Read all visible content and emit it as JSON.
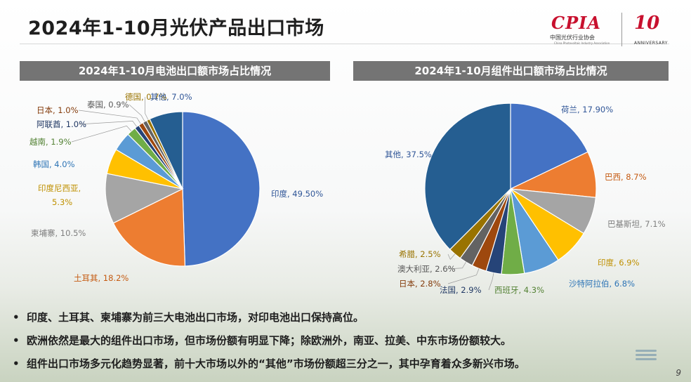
{
  "page": {
    "title": "2024年1-10月光伏产品出口市场",
    "page_number": "9"
  },
  "logo": {
    "brand": "CPIA",
    "brand_cn": "中国光伏行业协会",
    "brand_en": "China Photovoltaic Industry Association",
    "anniversary_mark": "10",
    "anniversary_text": "ANNIVERSARY"
  },
  "colors": {
    "blue": "#4472C4",
    "orange": "#ED7D31",
    "gray": "#A5A5A5",
    "gold": "#FFC000",
    "lightblue": "#5B9BD5",
    "green": "#70AD47",
    "navy": "#264478",
    "brown": "#9E480E",
    "darkgray": "#636363",
    "olive": "#997300",
    "darkblue": "#255E91",
    "header_bg": "#747474"
  },
  "chart_data": [
    {
      "type": "pie",
      "title": "2024年1-10月电池出口额市场占比情况",
      "slices": [
        {
          "name": "印度",
          "value": 49.5,
          "label": "印度, 49.50%",
          "color": "#4472C4",
          "label_color": "#2F5597"
        },
        {
          "name": "土耳其",
          "value": 18.2,
          "label": "土耳其, 18.2%",
          "color": "#ED7D31",
          "label_color": "#C55A11"
        },
        {
          "name": "柬埔寨",
          "value": 10.5,
          "label": "柬埔寨, 10.5%",
          "color": "#A5A5A5",
          "label_color": "#7F7F7F"
        },
        {
          "name": "印度尼西亚",
          "value": 5.3,
          "label": "印度尼西亚, 5.3%",
          "label_lines": [
            "印度尼西亚,",
            "5.3%"
          ],
          "color": "#FFC000",
          "label_color": "#BF9000"
        },
        {
          "name": "韩国",
          "value": 4.0,
          "label": "韩国, 4.0%",
          "color": "#5B9BD5",
          "label_color": "#2E75B6"
        },
        {
          "name": "越南",
          "value": 1.9,
          "label": "越南, 1.9%",
          "color": "#70AD47",
          "label_color": "#548235"
        },
        {
          "name": "阿联酋",
          "value": 1.0,
          "label": "阿联酋, 1.0%",
          "color": "#264478",
          "label_color": "#203864"
        },
        {
          "name": "日本",
          "value": 1.0,
          "label": "日本, 1.0%",
          "color": "#9E480E",
          "label_color": "#843C0C"
        },
        {
          "name": "泰国",
          "value": 0.9,
          "label": "泰国, 0.9%",
          "color": "#636363",
          "label_color": "#595959"
        },
        {
          "name": "德国",
          "value": 0.7,
          "label": "德国, 0.7%",
          "color": "#997300",
          "label_color": "#997300"
        },
        {
          "name": "其他",
          "value": 7.0,
          "label": "其他, 7.0%",
          "color": "#255E91",
          "label_color": "#2F5597"
        }
      ]
    },
    {
      "type": "pie",
      "title": "2024年1-10月组件出口额市场占比情况",
      "slices": [
        {
          "name": "荷兰",
          "value": 17.9,
          "label": "荷兰, 17.90%",
          "color": "#4472C4",
          "label_color": "#2F5597"
        },
        {
          "name": "巴西",
          "value": 8.7,
          "label": "巴西, 8.7%",
          "color": "#ED7D31",
          "label_color": "#C55A11"
        },
        {
          "name": "巴基斯坦",
          "value": 7.1,
          "label": "巴基斯坦, 7.1%",
          "color": "#A5A5A5",
          "label_color": "#7F7F7F"
        },
        {
          "name": "印度",
          "value": 6.9,
          "label": "印度, 6.9%",
          "color": "#FFC000",
          "label_color": "#BF9000"
        },
        {
          "name": "沙特阿拉伯",
          "value": 6.8,
          "label": "沙特阿拉伯, 6.8%",
          "color": "#5B9BD5",
          "label_color": "#2E75B6"
        },
        {
          "name": "西班牙",
          "value": 4.3,
          "label": "西班牙, 4.3%",
          "color": "#70AD47",
          "label_color": "#548235"
        },
        {
          "name": "法国",
          "value": 2.9,
          "label": "法国, 2.9%",
          "color": "#264478",
          "label_color": "#203864"
        },
        {
          "name": "日本",
          "value": 2.8,
          "label": "日本, 2.8%",
          "color": "#9E480E",
          "label_color": "#843C0C"
        },
        {
          "name": "澳大利亚",
          "value": 2.6,
          "label": "澳大利亚, 2.6%",
          "color": "#636363",
          "label_color": "#595959"
        },
        {
          "name": "希腊",
          "value": 2.5,
          "label": "希腊, 2.5%",
          "color": "#997300",
          "label_color": "#997300"
        },
        {
          "name": "其他",
          "value": 37.5,
          "label": "其他, 37.5%",
          "color": "#255E91",
          "label_color": "#2F5597"
        }
      ]
    }
  ],
  "bullets": [
    "印度、土耳其、柬埔寨为前三大电池出口市场，对印电池出口保持高位。",
    "欧洲依然是最大的组件出口市场，但市场份额有明显下降；除欧洲外，南亚、拉美、中东市场份额较大。",
    "组件出口市场多元化趋势显著，前十大市场以外的“其他”市场份额超三分之一，其中孕育着众多新兴市场。"
  ],
  "bullet_symbol": "•"
}
